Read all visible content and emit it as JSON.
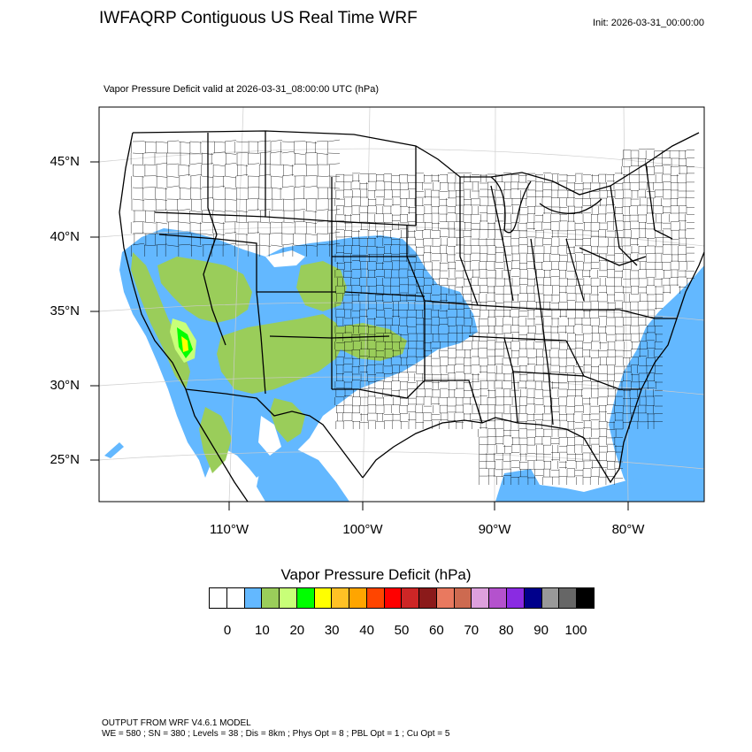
{
  "header": {
    "title": "IWFAQRP Contiguous US Real Time WRF",
    "init": "Init: 2026-03-31_00:00:00"
  },
  "map": {
    "plot_title": "Vapor Pressure Deficit valid at 2026-03-31_08:00:00 UTC   (hPa)",
    "lat_labels": [
      "45°N",
      "40°N",
      "35°N",
      "30°N",
      "25°N"
    ],
    "lon_labels": [
      "110°W",
      "100°W",
      "90°W",
      "80°W"
    ]
  },
  "colorbar": {
    "title": "Vapor Pressure Deficit  (hPa)",
    "tick_labels": [
      "0",
      "10",
      "20",
      "30",
      "40",
      "50",
      "60",
      "70",
      "80",
      "90",
      "100"
    ],
    "colors": [
      "#ffffff",
      "#ffffff",
      "#63b8ff",
      "#9acd5a",
      "#c8ff78",
      "#00ff00",
      "#ffff00",
      "#ffc125",
      "#ffa500",
      "#ff4500",
      "#ff0000",
      "#cd2626",
      "#8b1a1a",
      "#e9795f",
      "#cd6a50",
      "#dda0dd",
      "#b452cd",
      "#8a2be2",
      "#00008b",
      "#999999",
      "#666666",
      "#000000"
    ]
  },
  "footer": {
    "line1": "OUTPUT FROM WRF V4.6.1 MODEL",
    "line2": "WE = 580 ; SN = 380 ; Levels = 38 ; Dis = 8km ; Phys Opt = 8 ; PBL Opt = 1 ; Cu Opt = 5"
  }
}
